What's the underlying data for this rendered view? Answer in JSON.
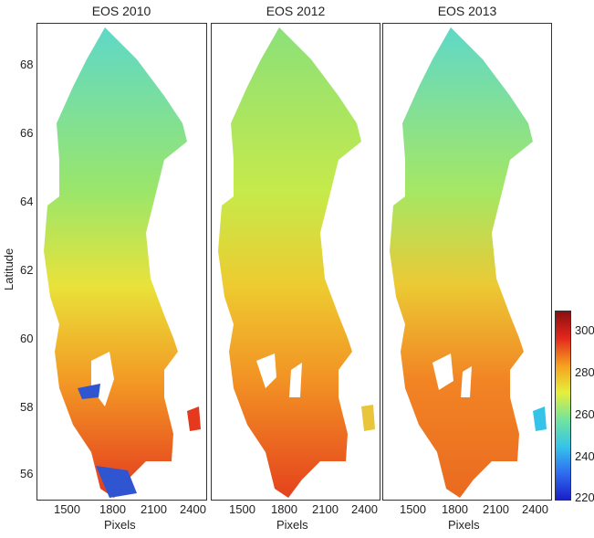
{
  "panels": [
    {
      "title": "EOS 2010"
    },
    {
      "title": "EOS 2012"
    },
    {
      "title": "EOS 2013"
    }
  ],
  "y_axis": {
    "label": "Latitude",
    "ticks": [
      "68",
      "66",
      "64",
      "62",
      "60",
      "58",
      "56"
    ]
  },
  "x_axis": {
    "label": "Pixels",
    "ticks": [
      "1500",
      "1800",
      "2100",
      "2400"
    ]
  },
  "colorbar": {
    "ticks": [
      "300",
      "280",
      "260",
      "240",
      "220"
    ],
    "range": [
      220,
      310
    ]
  },
  "colors": {
    "low": "#1a1fc8",
    "cyan": "#35c3ea",
    "green": "#7fe07a",
    "yellow": "#e7ef3c",
    "orange": "#f5a21f",
    "red": "#e3261c",
    "high": "#8a0f0f"
  }
}
